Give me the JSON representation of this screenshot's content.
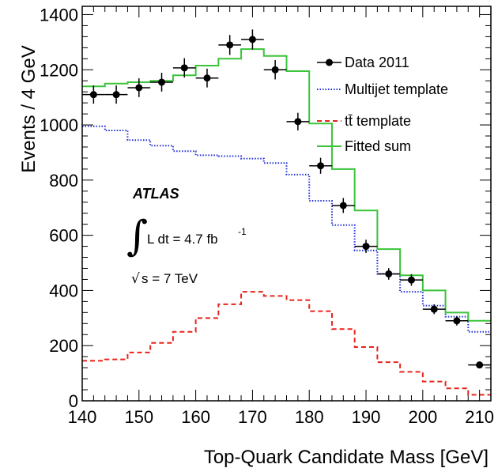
{
  "chart_data": {
    "type": "line",
    "title": "",
    "xlabel": "Top-Quark Candidate Mass [GeV]",
    "ylabel": "Events / 4 GeV",
    "xlim": [
      140,
      212
    ],
    "ylim": [
      0,
      1430
    ],
    "x_ticks": [
      140,
      150,
      160,
      170,
      180,
      190,
      200,
      210
    ],
    "y_ticks": [
      0,
      200,
      400,
      600,
      800,
      1000,
      1200,
      1400
    ],
    "bin_edges": [
      140,
      144,
      148,
      152,
      156,
      160,
      164,
      168,
      172,
      176,
      180,
      184,
      188,
      192,
      196,
      200,
      204,
      208,
      212
    ],
    "data_points": {
      "name": "Data 2011",
      "x": [
        142,
        146,
        150,
        154,
        158,
        162,
        166,
        170,
        174,
        178,
        182,
        186,
        190,
        194,
        198,
        202,
        206,
        210
      ],
      "y": [
        1110,
        1110,
        1135,
        1155,
        1207,
        1170,
        1290,
        1310,
        1200,
        1012,
        852,
        708,
        560,
        460,
        438,
        332,
        290,
        130
      ],
      "yerr": [
        33,
        33,
        34,
        34,
        35,
        34,
        36,
        36,
        35,
        32,
        29,
        27,
        24,
        21,
        21,
        18,
        17,
        11
      ]
    },
    "series": [
      {
        "name": "Multijet template",
        "style": "dotted",
        "color": "#1f2fd6",
        "values": [
          995,
          980,
          945,
          925,
          905,
          890,
          887,
          878,
          862,
          820,
          725,
          637,
          545,
          460,
          395,
          345,
          305,
          250
        ]
      },
      {
        "name": "tt̄ template",
        "style": "dashed",
        "color": "#e8231c",
        "values": [
          145,
          150,
          175,
          210,
          250,
          300,
          350,
          395,
          380,
          365,
          325,
          260,
          195,
          140,
          105,
          70,
          45,
          22
        ]
      },
      {
        "name": "Fitted sum",
        "style": "solid",
        "color": "#3ac43a",
        "values": [
          1140,
          1150,
          1155,
          1160,
          1180,
          1215,
          1240,
          1275,
          1250,
          1195,
          1005,
          840,
          690,
          550,
          455,
          400,
          320,
          290
        ]
      }
    ],
    "legend": {
      "position": "top-right",
      "entries": [
        "Data 2011",
        "Multijet template",
        "tt̄ template",
        "Fitted sum"
      ]
    },
    "annotations": {
      "experiment": "ATLAS",
      "lumi_text": "L dt = 4.7 fb",
      "lumi_exp": "-1",
      "energy_text": "s = 7 TeV"
    },
    "colors": {
      "data": "#000000",
      "multijet": "#1f2fd6",
      "ttbar": "#e8231c",
      "fitted": "#3ac43a"
    }
  }
}
